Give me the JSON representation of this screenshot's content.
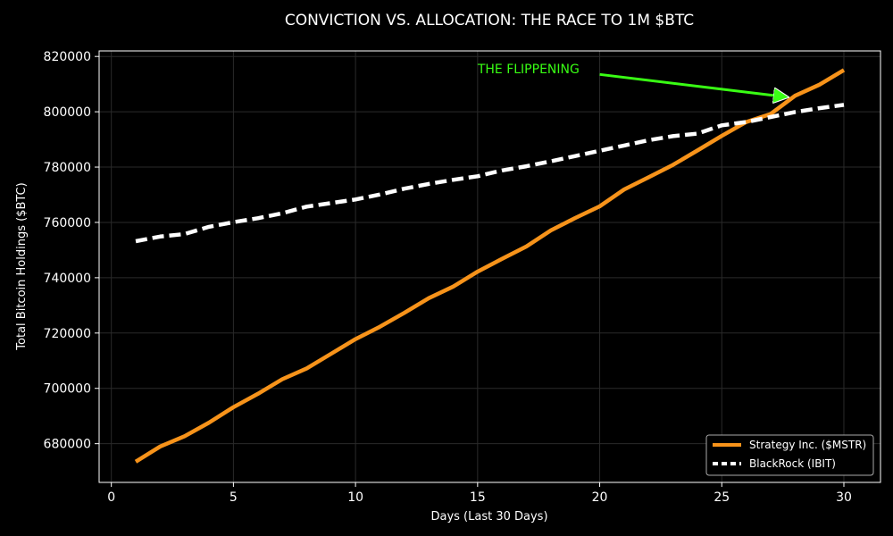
{
  "chart_data": {
    "type": "line",
    "title": "CONVICTION VS. ALLOCATION: THE RACE TO 1M $BTC",
    "xlabel": "Days (Last 30 Days)",
    "ylabel": "Total Bitcoin Holdings ($BTC)",
    "xlim": [
      -0.5,
      31.5
    ],
    "ylim": [
      666000,
      822000
    ],
    "xticks": [
      0,
      5,
      10,
      15,
      20,
      25,
      30
    ],
    "yticks": [
      680000,
      700000,
      720000,
      740000,
      760000,
      780000,
      800000,
      820000
    ],
    "grid": true,
    "legend_position": "bottom-right",
    "x": [
      1,
      2,
      3,
      4,
      5,
      6,
      7,
      8,
      9,
      10,
      11,
      12,
      13,
      14,
      15,
      16,
      17,
      18,
      19,
      20,
      21,
      22,
      23,
      24,
      25,
      26,
      27,
      28,
      29,
      30
    ],
    "series": [
      {
        "name": "Strategy Inc. ($MSTR)",
        "color": "#f7931a",
        "style": "solid",
        "values": [
          673500,
          679000,
          682700,
          687600,
          693200,
          698000,
          703300,
          707200,
          712500,
          717800,
          722300,
          727300,
          732600,
          736800,
          742200,
          746800,
          751300,
          757100,
          761600,
          765800,
          771900,
          776300,
          780800,
          786000,
          791300,
          796300,
          799200,
          805800,
          809800,
          815100
        ]
      },
      {
        "name": "BlackRock (IBIT)",
        "color": "#ffffff",
        "style": "dashed",
        "values": [
          753200,
          754900,
          755800,
          758400,
          760100,
          761500,
          763300,
          765700,
          767000,
          768300,
          770100,
          772200,
          773900,
          775400,
          776700,
          778800,
          780300,
          782100,
          784000,
          785900,
          787800,
          789700,
          791200,
          792100,
          795100,
          796300,
          798100,
          799900,
          801300,
          802500
        ]
      }
    ],
    "annotation": {
      "text": "THE FLIPPENING",
      "color": "#39ff14",
      "text_x": 15,
      "text_y": 814000,
      "arrow_from_x": 20,
      "arrow_from_y": 813500,
      "arrow_to_x": 27.7,
      "arrow_to_y": 805300
    }
  }
}
